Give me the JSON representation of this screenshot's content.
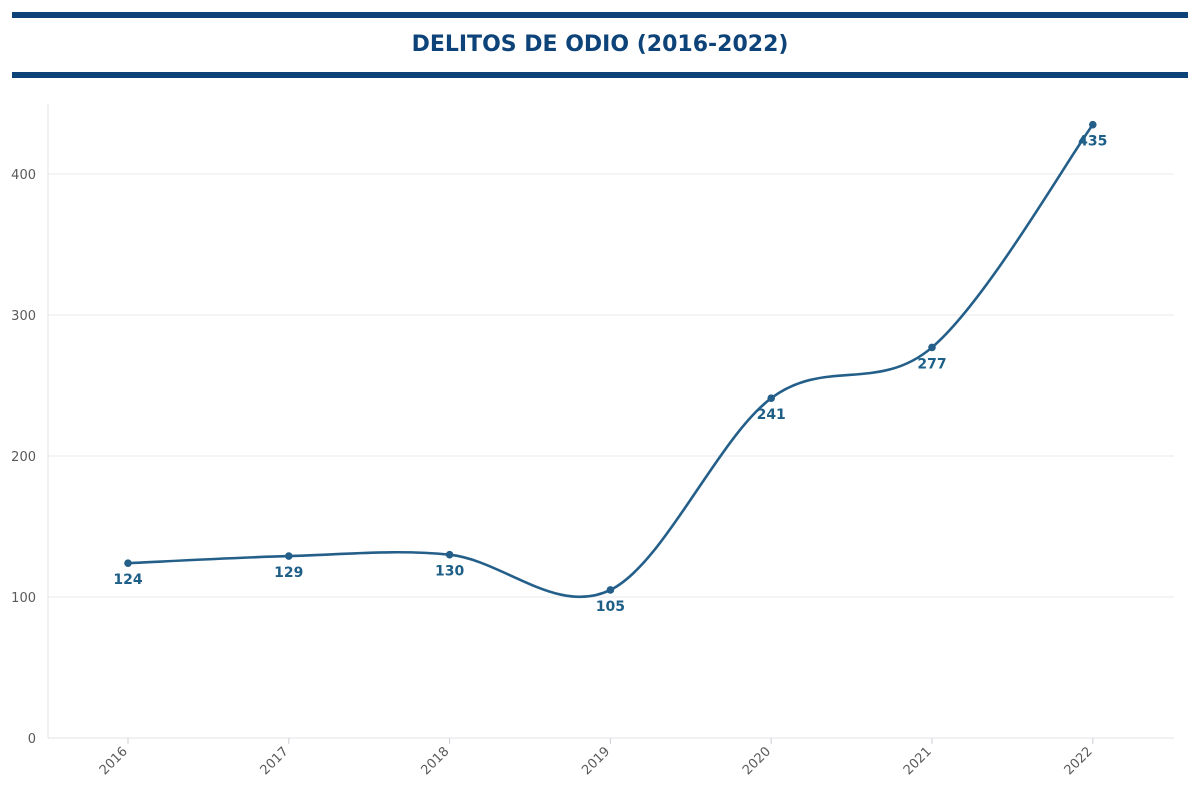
{
  "chart_data": {
    "type": "line",
    "title": "DELITOS DE ODIO (2016-2022)",
    "categories": [
      "2016",
      "2017",
      "2018",
      "2019",
      "2020",
      "2021",
      "2022"
    ],
    "values": [
      124,
      129,
      130,
      105,
      241,
      277,
      435
    ],
    "ylim": [
      0,
      450
    ],
    "yticks": [
      0,
      100,
      200,
      300,
      400
    ],
    "xlabel": "",
    "ylabel": "",
    "grid": true,
    "smooth": true,
    "line_color": "#245f8a",
    "label_color": "#1e5f88",
    "legend": "none"
  },
  "header": {
    "title": "DELITOS DE ODIO (2016-2022)",
    "rule_color": "#0d4378"
  }
}
